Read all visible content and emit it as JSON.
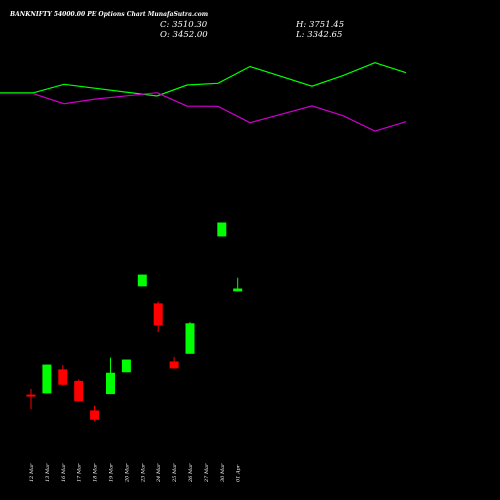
{
  "header": {
    "title": "BANKNIFTY 54000.00 PE Options  Chart MunafaSutra.com",
    "close_label": "C: 3510.30",
    "high_label": "H: 3751.45",
    "open_label": "O: 3452.00",
    "low_label": "L: 3342.65"
  },
  "chart_data": {
    "type": "candlestick",
    "title": "BANKNIFTY 54000.00 PE Options  Chart MunafaSutra.com",
    "categories": [
      "12 Mar",
      "13 Mar",
      "16 Mar",
      "17 Mar",
      "18 Mar",
      "19 Mar",
      "20 Mar",
      "23 Mar",
      "24 Mar",
      "25 Mar",
      "26 Mar",
      "27 Mar",
      "30 Mar",
      "01 Apr"
    ],
    "candles_visible": 11,
    "candles": [
      {
        "x": "12 Mar",
        "open": 33,
        "close": 27,
        "high": 57,
        "low": -28,
        "color": "red"
      },
      {
        "x": "13 Mar",
        "open": 38,
        "close": 158,
        "high": 158,
        "low": 38,
        "color": "green"
      },
      {
        "x": "16 Mar",
        "open": 138,
        "close": 74,
        "high": 156,
        "low": 72,
        "color": "red"
      },
      {
        "x": "17 Mar",
        "open": 90,
        "close": 5,
        "high": 96,
        "low": 5,
        "color": "red"
      },
      {
        "x": "18 Mar",
        "open": -33,
        "close": -72,
        "high": -14,
        "low": -78,
        "color": "red"
      },
      {
        "x": "19 Mar",
        "open": 35,
        "close": 124,
        "high": 187,
        "low": 35,
        "color": "green"
      },
      {
        "x": "20 Mar",
        "open": 126,
        "close": 179,
        "high": 179,
        "low": 126,
        "color": "green"
      },
      {
        "x": "23 Mar",
        "open": 484,
        "close": 533,
        "high": 533,
        "low": 484,
        "color": "green"
      },
      {
        "x": "24 Mar",
        "open": 413,
        "close": 321,
        "high": 421,
        "low": 293,
        "color": "red"
      },
      {
        "x": "25 Mar",
        "open": 171,
        "close": 142,
        "high": 190,
        "low": 142,
        "color": "red"
      },
      {
        "x": "26 Mar",
        "open": 203,
        "close": 330,
        "high": 335,
        "low": 203,
        "color": "green"
      },
      {
        "x": "30 Mar",
        "open": 692,
        "close": 750,
        "high": 750,
        "low": 692,
        "color": "green"
      },
      {
        "x": "01 Apr",
        "open": 463,
        "close": 475,
        "high": 520,
        "low": 463,
        "color": "green"
      }
    ],
    "lines": [
      {
        "color": "#00ff00",
        "points": [
          [
            -28,
            1290
          ],
          [
            33,
            1290
          ],
          [
            64,
            1326
          ],
          [
            157,
            1277
          ],
          [
            187,
            1323
          ],
          [
            218,
            1330
          ],
          [
            250,
            1400
          ],
          [
            312,
            1318
          ],
          [
            343,
            1362
          ],
          [
            375,
            1416
          ],
          [
            406,
            1374
          ]
        ]
      },
      {
        "color": "#cc00cc",
        "points": [
          [
            -28,
            1287
          ],
          [
            33,
            1287
          ],
          [
            64,
            1245
          ],
          [
            95,
            1264
          ],
          [
            157,
            1291
          ],
          [
            187,
            1235
          ],
          [
            218,
            1234
          ],
          [
            250,
            1166
          ],
          [
            312,
            1236
          ],
          [
            343,
            1195
          ],
          [
            375,
            1131
          ],
          [
            406,
            1170
          ]
        ]
      }
    ],
    "ylim": [
      -200,
      1450
    ],
    "grid": false,
    "legend": "none"
  }
}
